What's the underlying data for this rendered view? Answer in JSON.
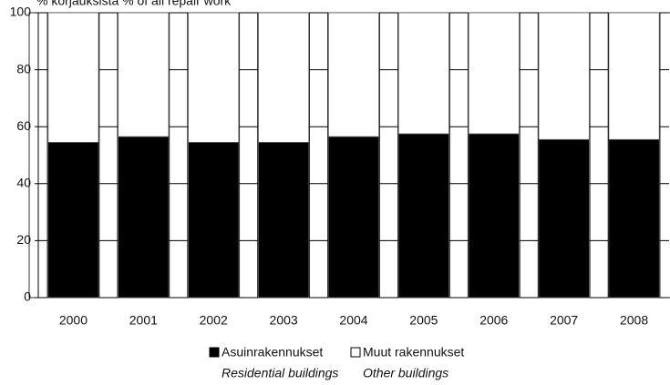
{
  "chart_data": {
    "type": "bar",
    "stacked": true,
    "y_label": "% korjauksista   % of all repair work",
    "categories": [
      "2000",
      "2001",
      "2002",
      "2003",
      "2004",
      "2005",
      "2006",
      "2007",
      "2008"
    ],
    "series": [
      {
        "name": "Asuinrakennukset",
        "name_en": "Residential buildings",
        "color": "#000000",
        "values": [
          54.5,
          56.5,
          54.5,
          54.5,
          56.5,
          57.5,
          57.5,
          55.5,
          55.5
        ]
      },
      {
        "name": "Muut rakennukset",
        "name_en": "Other buildings",
        "color": "#ffffff",
        "values": [
          45.5,
          43.5,
          45.5,
          45.5,
          43.5,
          42.5,
          42.5,
          44.5,
          44.5
        ]
      }
    ],
    "ylim": [
      0,
      100
    ],
    "yticks": [
      0,
      20,
      40,
      60,
      80,
      100
    ],
    "grid": true
  }
}
